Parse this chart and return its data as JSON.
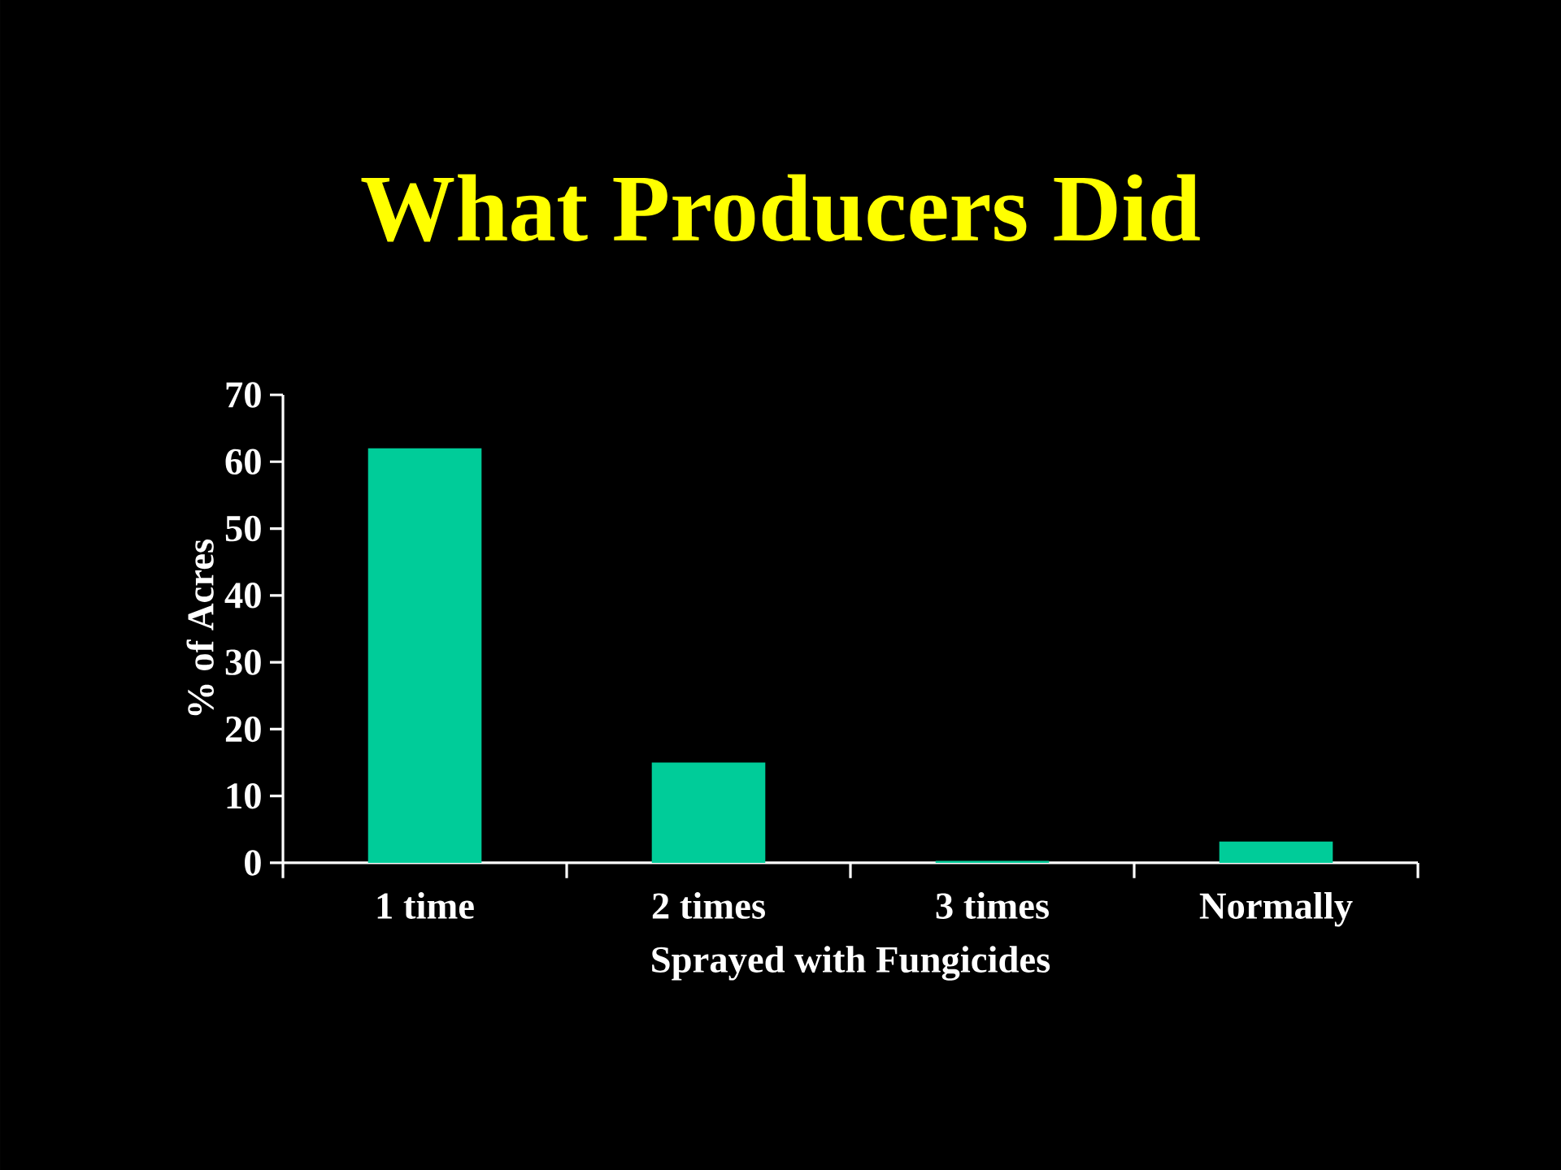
{
  "chart_data": {
    "type": "bar",
    "title": "What Producers Did",
    "xlabel": "Sprayed with Fungicides",
    "ylabel": "% of Acres",
    "categories": [
      "1 time",
      "2 times",
      "3 times",
      "Normally"
    ],
    "values": [
      62,
      15,
      0.3,
      3.2
    ],
    "color": "#00cc99",
    "ylim": [
      0,
      70
    ],
    "yticks": [
      0,
      10,
      20,
      30,
      40,
      50,
      60,
      70
    ]
  }
}
